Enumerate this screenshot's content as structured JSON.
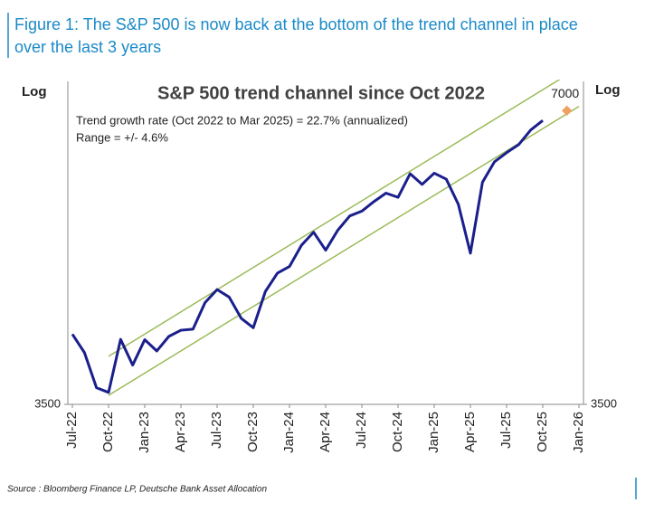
{
  "caption": {
    "line1": "Figure 1: The S&P 500 is now back at the bottom of the trend channel in place",
    "line2": "over the last 3 years"
  },
  "chart_data": {
    "type": "line",
    "title": "S&P 500 trend channel since Oct 2022",
    "y_label": "Log",
    "y2_label": "Log",
    "log_scale": true,
    "annotations": [
      "Trend growth rate (Oct 2022 to Mar 2025) = 22.7% (annualized)",
      "Range = +/- 4.6%"
    ],
    "x": [
      "2022-07",
      "2022-08",
      "2022-09",
      "2022-10",
      "2022-11",
      "2022-12",
      "2023-01",
      "2023-02",
      "2023-03",
      "2023-04",
      "2023-05",
      "2023-06",
      "2023-07",
      "2023-08",
      "2023-09",
      "2023-10",
      "2023-11",
      "2023-12",
      "2024-01",
      "2024-02",
      "2024-03",
      "2024-04",
      "2024-05",
      "2024-06",
      "2024-07",
      "2024-08",
      "2024-09",
      "2024-10",
      "2024-11",
      "2024-12",
      "2025-01",
      "2025-02",
      "2025-03",
      "2025-04",
      "2025-05",
      "2025-06",
      "2025-07",
      "2025-08",
      "2025-09",
      "2025-10"
    ],
    "series": [
      {
        "color": "#1a1f8c",
        "values": [
          4130,
          3955,
          3640,
          3600,
          4080,
          3840,
          4077,
          3970,
          4109,
          4169,
          4180,
          4450,
          4589,
          4508,
          4288,
          4194,
          4568,
          4770,
          4846,
          5096,
          5254,
          5036,
          5278,
          5460,
          5522,
          5648,
          5762,
          5705,
          6032,
          5882,
          6040,
          5955,
          5612,
          5000,
          5912,
          6205,
          6339,
          6460,
          6688,
          6840
        ]
      }
    ],
    "channel": {
      "x": [
        "2022-10",
        "2026-01"
      ],
      "lower": [
        3575,
        7070
      ],
      "upper": [
        3920,
        7750
      ],
      "color": "#9bbb59"
    },
    "target": {
      "x": "2025-12",
      "value": 7000,
      "color": "#f0a060"
    },
    "xlim": [
      "2022-07",
      "2026-01"
    ],
    "xticks": [
      {
        "value": "2022-07",
        "label": "Jul-22"
      },
      {
        "value": "2022-10",
        "label": "Oct-22"
      },
      {
        "value": "2023-01",
        "label": "Jan-23"
      },
      {
        "value": "2023-04",
        "label": "Apr-23"
      },
      {
        "value": "2023-07",
        "label": "Jul-23"
      },
      {
        "value": "2023-10",
        "label": "Oct-23"
      },
      {
        "value": "2024-01",
        "label": "Jan-24"
      },
      {
        "value": "2024-04",
        "label": "Apr-24"
      },
      {
        "value": "2024-07",
        "label": "Jul-24"
      },
      {
        "value": "2024-10",
        "label": "Oct-24"
      },
      {
        "value": "2025-01",
        "label": "Jan-25"
      },
      {
        "value": "2025-04",
        "label": "Apr-25"
      },
      {
        "value": "2025-07",
        "label": "Jul-25"
      },
      {
        "value": "2025-10",
        "label": "Oct-25"
      },
      {
        "value": "2026-01",
        "label": "Jan-26"
      }
    ],
    "ylim": [
      3500,
      7500
    ],
    "yticks": [
      3500
    ],
    "source": "Source : Bloomberg Finance LP, Deutsche Bank Asset Allocation"
  }
}
